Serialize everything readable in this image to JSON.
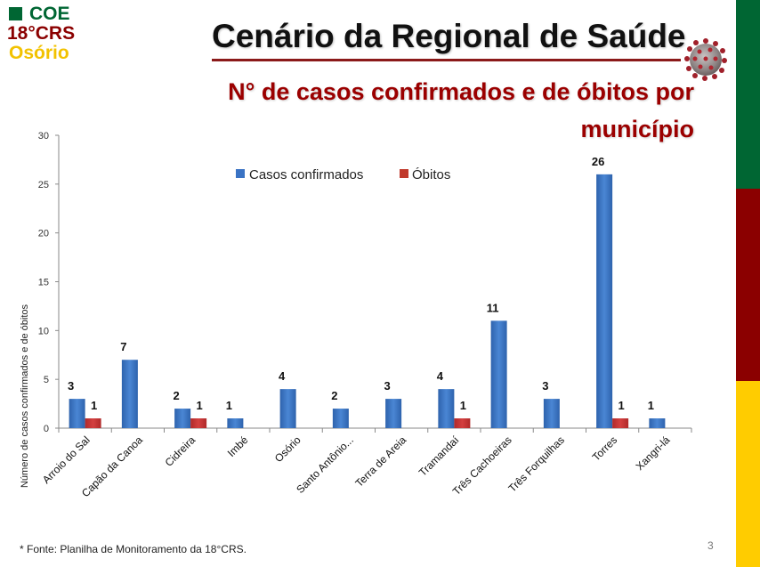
{
  "logo": {
    "line1": "COE",
    "line2": "18°CRS",
    "line3": "Osório"
  },
  "header": {
    "title": "Cenário da Regional de Saúde",
    "subtitle_line1": "N° de casos confirmados e de óbitos por",
    "subtitle_line2": "município"
  },
  "colors": {
    "casos": "#3A73C4",
    "obitos": "#C0392B",
    "stripe_green": "#006633",
    "stripe_red": "#8B0000",
    "stripe_yellow": "#FFCC00"
  },
  "footer": {
    "source": "* Fonte: Planilha de Monitoramento da 18°CRS.",
    "page_number": "3"
  },
  "chart_data": {
    "type": "bar",
    "title": "N° de casos confirmados e de óbitos por município",
    "xlabel": "",
    "ylabel": "Número de casos confirmados e de óbitos",
    "ylim": [
      0,
      30
    ],
    "yticks": [
      "0",
      "5",
      "10",
      "15",
      "20",
      "25",
      "30"
    ],
    "grid": false,
    "legend_position": "top-center",
    "categories": [
      "Arroio do Sal",
      "Capão da Canoa",
      "Cidreira",
      "Imbé",
      "Osório",
      "Santo Antônio...",
      "Terra de Areia",
      "Tramandaí",
      "Três Cachoeiras",
      "Três Forquilhas",
      "Torres",
      "Xangri-lá"
    ],
    "series": [
      {
        "name": "Casos confirmados",
        "values": [
          3,
          7,
          2,
          1,
          4,
          2,
          3,
          4,
          11,
          3,
          26,
          1
        ]
      },
      {
        "name": "Óbitos",
        "values": [
          1,
          null,
          1,
          null,
          null,
          null,
          null,
          1,
          null,
          null,
          1,
          null
        ]
      }
    ]
  }
}
